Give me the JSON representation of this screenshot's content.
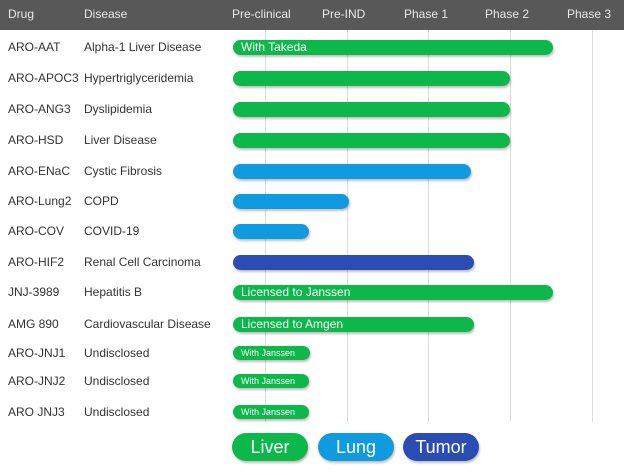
{
  "chart_data": {
    "type": "bar",
    "orientation": "horizontal-gantt",
    "columns": [
      "Drug",
      "Disease"
    ],
    "phases": [
      "Pre-clinical",
      "Pre-IND",
      "Phase 1",
      "Phase 2",
      "Phase 3"
    ],
    "colors": {
      "Liver": "#0cb84a",
      "Lung": "#109be0",
      "Tumor": "#2b4db3"
    },
    "legend": [
      {
        "label": "Liver",
        "category": "Liver"
      },
      {
        "label": "Lung",
        "category": "Lung"
      },
      {
        "label": "Tumor",
        "category": "Tumor"
      }
    ],
    "rows": [
      {
        "drug": "ARO-AAT",
        "disease": "Alpha-1 Liver Disease",
        "category": "Liver",
        "progress": 3.93,
        "label": "With Takeda"
      },
      {
        "drug": "ARO-APOC3",
        "disease": "Hypertriglyceridemia",
        "category": "Liver",
        "progress": 3.4,
        "label": ""
      },
      {
        "drug": "ARO-ANG3",
        "disease": "Dyslipidemia",
        "category": "Liver",
        "progress": 3.4,
        "label": ""
      },
      {
        "drug": "ARO-HSD",
        "disease": "Liver Disease",
        "category": "Liver",
        "progress": 3.4,
        "label": ""
      },
      {
        "drug": "ARO-ENaC",
        "disease": "Cystic Fibrosis",
        "category": "Lung",
        "progress": 2.92,
        "label": ""
      },
      {
        "drug": "ARO-Lung2",
        "disease": "COPD",
        "category": "Lung",
        "progress": 1.42,
        "label": ""
      },
      {
        "drug": "ARO-COV",
        "disease": "COVID-19",
        "category": "Lung",
        "progress": 0.93,
        "label": ""
      },
      {
        "drug": "ARO-HIF2",
        "disease": "Renal Cell Carcinoma",
        "category": "Tumor",
        "progress": 2.96,
        "label": ""
      },
      {
        "drug": "JNJ-3989",
        "disease": "Hepatitis B",
        "category": "Liver",
        "progress": 3.93,
        "label": "Licensed to Janssen"
      },
      {
        "drug": "AMG 890",
        "disease": "Cardiovascular Disease",
        "category": "Liver",
        "progress": 2.96,
        "label": "Licensed to Amgen"
      },
      {
        "drug": "ARO-JNJ1",
        "disease": "Undisclosed",
        "category": "Liver",
        "progress": 0.94,
        "label": "With Janssen",
        "small": true
      },
      {
        "drug": "ARO-JNJ2",
        "disease": "Undisclosed",
        "category": "Liver",
        "progress": 0.93,
        "label": "With Janssen",
        "small": true
      },
      {
        "drug": "ARO JNJ3",
        "disease": "Undisclosed",
        "category": "Liver",
        "progress": 0.93,
        "label": "With Janssen",
        "small": true
      }
    ]
  }
}
